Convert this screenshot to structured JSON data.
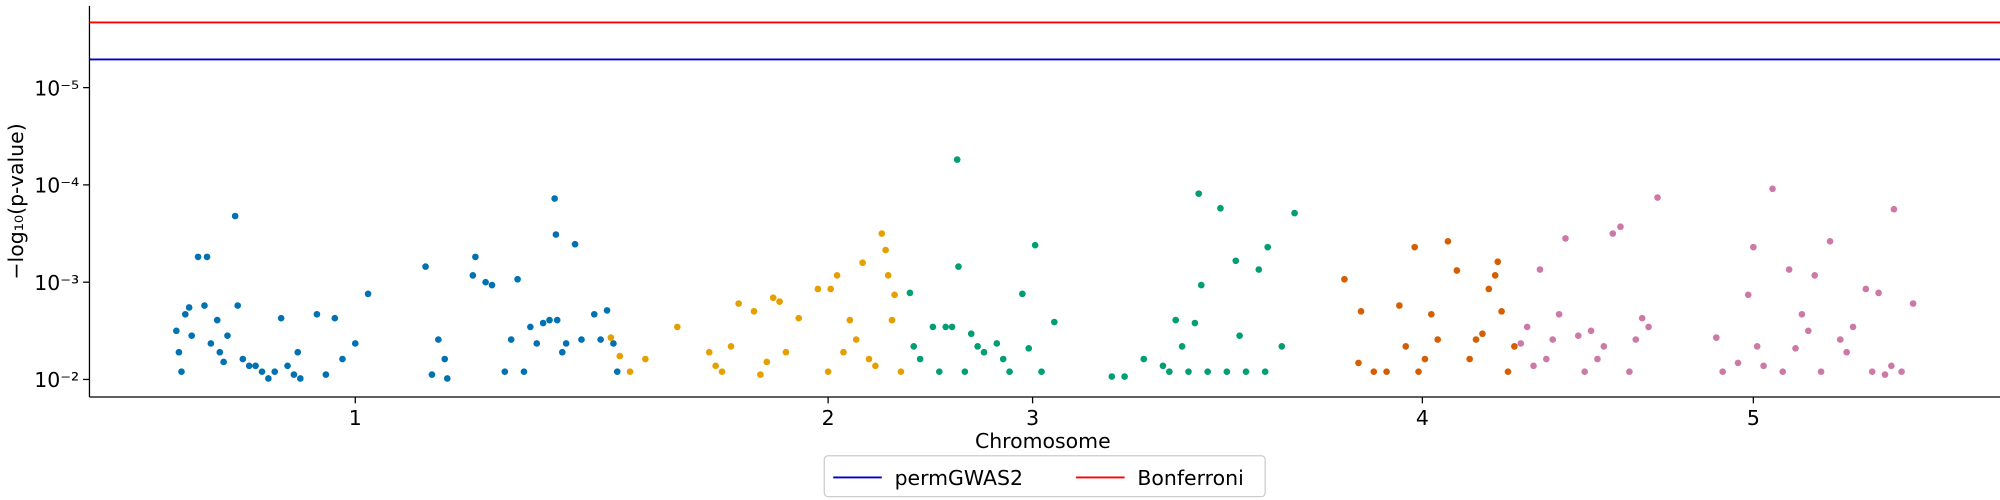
{
  "chart_data": {
    "type": "scatter",
    "xlabel": "Chromosome",
    "ylabel": "−log₁₀(p-value)",
    "xlim": [
      70,
      1565
    ],
    "ylim": [
      1.82,
      5.84
    ],
    "xticks": [
      {
        "value": 278,
        "label": "1"
      },
      {
        "value": 648,
        "label": "2"
      },
      {
        "value": 808,
        "label": "3"
      },
      {
        "value": 1113,
        "label": "4"
      },
      {
        "value": 1372,
        "label": "5"
      }
    ],
    "yticks": [
      {
        "value": 2,
        "label": "10⁻²"
      },
      {
        "value": 3,
        "label": "10⁻³"
      },
      {
        "value": 4,
        "label": "10⁻⁴"
      },
      {
        "value": 5,
        "label": "10⁻⁵"
      }
    ],
    "legend_position": "bottom",
    "series": [
      {
        "color": "#0072b2",
        "x": [
          138,
          140,
          142,
          145,
          148,
          150,
          155,
          160,
          162,
          165,
          170,
          172,
          175,
          178,
          184,
          186,
          190,
          195,
          200,
          205,
          210,
          215,
          220,
          225,
          230,
          233,
          235,
          248,
          255,
          262,
          268,
          278,
          288,
          333,
          338,
          343,
          348,
          350,
          370,
          372,
          380,
          385,
          395,
          400,
          405,
          410,
          415,
          420,
          425,
          430,
          434,
          436,
          440,
          443,
          450,
          455,
          465,
          470,
          475,
          480,
          483,
          435
        ],
        "values": [
          2.5,
          2.28,
          2.08,
          2.67,
          2.74,
          2.45,
          3.26,
          2.76,
          3.26,
          2.37,
          2.61,
          2.28,
          2.18,
          2.45,
          3.68,
          2.76,
          2.21,
          2.14,
          2.14,
          2.08,
          2.01,
          2.08,
          2.63,
          2.14,
          2.05,
          2.28,
          2.01,
          2.67,
          2.05,
          2.63,
          2.21,
          2.37,
          2.88,
          3.16,
          2.05,
          2.41,
          2.21,
          2.01,
          3.07,
          3.26,
          3.0,
          2.97,
          2.08,
          2.41,
          3.03,
          2.08,
          2.54,
          2.37,
          2.58,
          2.61,
          3.86,
          2.61,
          2.28,
          2.37,
          3.39,
          2.41,
          2.67,
          2.41,
          2.71,
          2.37,
          2.08,
          3.49
        ]
      },
      {
        "color": "#e69f00",
        "x": [
          478,
          485,
          493,
          505,
          530,
          555,
          560,
          565,
          572,
          578,
          590,
          595,
          600,
          605,
          610,
          615,
          625,
          640,
          648,
          650,
          655,
          660,
          665,
          670,
          675,
          680,
          685,
          690,
          693,
          695,
          698,
          700,
          705
        ],
        "values": [
          2.43,
          2.24,
          2.08,
          2.21,
          2.54,
          2.28,
          2.14,
          2.08,
          2.34,
          2.78,
          2.7,
          2.05,
          2.18,
          2.84,
          2.8,
          2.28,
          2.63,
          2.93,
          2.08,
          2.93,
          3.07,
          2.28,
          2.61,
          2.41,
          3.2,
          2.21,
          2.14,
          3.5,
          3.33,
          3.07,
          2.61,
          2.87,
          2.08
        ]
      },
      {
        "color": "#009e73",
        "x": [
          712,
          715,
          720,
          730,
          735,
          740,
          745,
          749,
          750,
          755,
          760,
          765,
          770,
          780,
          785,
          790,
          800,
          805,
          810,
          815,
          825,
          870,
          880,
          895,
          910,
          915,
          920,
          925,
          930,
          935,
          938,
          940,
          945,
          955,
          960,
          967,
          970,
          975,
          985,
          990,
          992,
          1003,
          1013
        ],
        "values": [
          2.89,
          2.34,
          2.21,
          2.54,
          2.08,
          2.54,
          2.54,
          4.26,
          3.16,
          2.08,
          2.47,
          2.34,
          2.28,
          2.37,
          2.21,
          2.08,
          2.88,
          2.32,
          3.38,
          2.08,
          2.59,
          2.03,
          2.03,
          2.21,
          2.14,
          2.08,
          2.61,
          2.34,
          2.08,
          2.58,
          3.91,
          2.97,
          2.08,
          3.76,
          2.08,
          3.22,
          2.45,
          2.08,
          3.13,
          2.08,
          3.36,
          2.34,
          3.71
        ]
      },
      {
        "color": "#d55e00",
        "x": [
          1052,
          1063,
          1065,
          1075,
          1085,
          1095,
          1100,
          1107,
          1110,
          1115,
          1120,
          1125,
          1133,
          1140,
          1150,
          1155,
          1160,
          1165,
          1170,
          1172,
          1175,
          1180,
          1185
        ],
        "values": [
          3.03,
          2.17,
          2.7,
          2.08,
          2.08,
          2.76,
          2.34,
          3.36,
          2.08,
          2.21,
          2.67,
          2.41,
          3.42,
          3.12,
          2.21,
          2.41,
          2.47,
          2.93,
          3.07,
          3.21,
          2.7,
          2.08,
          2.34
        ]
      },
      {
        "color": "#cc79a7",
        "x": [
          1190,
          1195,
          1200,
          1205,
          1210,
          1215,
          1220,
          1225,
          1235,
          1240,
          1245,
          1250,
          1255,
          1262,
          1268,
          1275,
          1280,
          1285,
          1290,
          1297,
          1343,
          1348,
          1360,
          1368,
          1372,
          1375,
          1380,
          1387,
          1395,
          1400,
          1405,
          1410,
          1415,
          1420,
          1425,
          1432,
          1440,
          1445,
          1450,
          1460,
          1465,
          1470,
          1475,
          1480,
          1482,
          1488,
          1497
        ],
        "values": [
          2.37,
          2.54,
          2.14,
          3.13,
          2.21,
          2.41,
          2.67,
          3.45,
          2.45,
          2.08,
          2.5,
          2.21,
          2.34,
          3.5,
          3.57,
          2.08,
          2.41,
          2.63,
          2.54,
          3.87,
          2.43,
          2.08,
          2.17,
          2.87,
          3.36,
          2.34,
          2.14,
          3.96,
          2.08,
          3.13,
          2.32,
          2.67,
          2.5,
          3.07,
          2.08,
          3.42,
          2.41,
          2.28,
          2.54,
          2.93,
          2.08,
          2.89,
          2.05,
          2.14,
          3.75,
          2.08,
          2.78
        ]
      }
    ],
    "thresholds": [
      {
        "name": "permGWAS2",
        "color": "#0000cc",
        "value": 5.29
      },
      {
        "name": "Bonferroni",
        "color": "#ff0000",
        "value": 5.67
      }
    ]
  }
}
